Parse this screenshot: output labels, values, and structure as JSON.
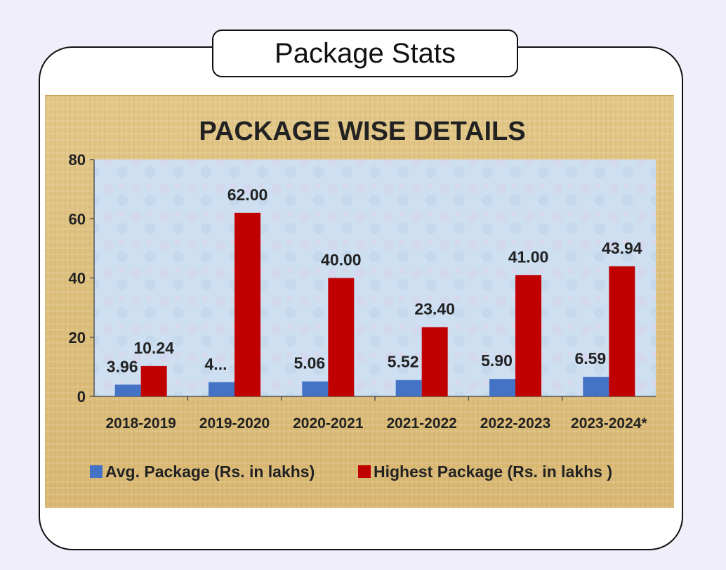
{
  "header": {
    "title": "Package Stats"
  },
  "colors": {
    "avg": "#4472c4",
    "highest": "#c00000",
    "plot_bg": "#cfe0ee",
    "figure_bg": "#e0c382"
  },
  "chart_data": {
    "type": "bar",
    "title": "PACKAGE WISE DETAILS",
    "categories": [
      "2018-2019",
      "2019-2020",
      "2020-2021",
      "2021-2022",
      "2022-2023",
      "2023-2024*"
    ],
    "series": [
      {
        "name": "Avg. Package (Rs. in lakhs)",
        "values": [
          3.96,
          4.8,
          5.06,
          5.52,
          5.9,
          6.59
        ],
        "labels": [
          "3.96",
          "4...",
          "5.06",
          "5.52",
          "5.90",
          "6.59"
        ]
      },
      {
        "name": "Highest Package (Rs. in lakhs )",
        "values": [
          10.24,
          62.0,
          40.0,
          23.4,
          41.0,
          43.94
        ],
        "labels": [
          "10.24",
          "62.00",
          "40.00",
          "23.40",
          "41.00",
          "43.94"
        ]
      }
    ],
    "ylim": [
      0,
      80
    ],
    "yticks": [
      "0",
      "20",
      "40",
      "60",
      "80"
    ],
    "legend": "bottom",
    "grid": false
  }
}
